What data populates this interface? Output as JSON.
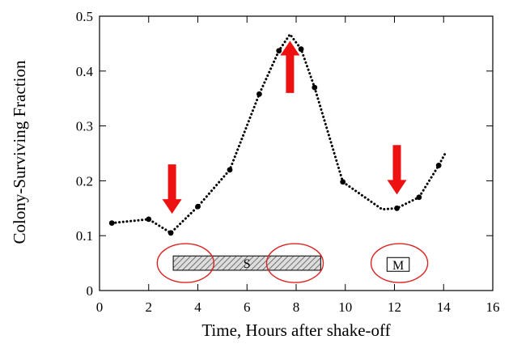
{
  "chart_data": {
    "type": "scatter",
    "xlabel": "Time, Hours after shake-off",
    "ylabel": "Colony-Surviving Fraction",
    "xlim": [
      0,
      16
    ],
    "ylim": [
      0,
      0.5
    ],
    "x_ticks": [
      0,
      2,
      4,
      6,
      8,
      10,
      12,
      14,
      16
    ],
    "y_ticks": [
      0,
      0.1,
      0.2,
      0.3,
      0.4,
      0.5
    ],
    "x_tick_labels": [
      "0",
      "2",
      "4",
      "6",
      "8",
      "10",
      "12",
      "14",
      "16"
    ],
    "y_tick_labels": [
      "0",
      "0.1",
      "0.2",
      "0.3",
      "0.4",
      "0.5"
    ],
    "grid": false,
    "series": [
      {
        "points": [
          {
            "x": 0.5,
            "y": 0.123
          },
          {
            "x": 2.0,
            "y": 0.13
          },
          {
            "x": 2.9,
            "y": 0.105
          },
          {
            "x": 4.0,
            "y": 0.153
          },
          {
            "x": 5.3,
            "y": 0.22
          },
          {
            "x": 6.5,
            "y": 0.358
          },
          {
            "x": 7.3,
            "y": 0.437
          },
          {
            "x": 7.75,
            "y": 0.467
          },
          {
            "x": 8.2,
            "y": 0.44
          },
          {
            "x": 8.75,
            "y": 0.37
          },
          {
            "x": 9.9,
            "y": 0.198
          },
          {
            "x": 11.5,
            "y": 0.148
          },
          {
            "x": 12.1,
            "y": 0.15
          },
          {
            "x": 13.0,
            "y": 0.17
          },
          {
            "x": 13.8,
            "y": 0.228
          },
          {
            "x": 14.1,
            "y": 0.253
          }
        ],
        "markers": [
          {
            "x": 0.5,
            "y": 0.123
          },
          {
            "x": 2.0,
            "y": 0.13
          },
          {
            "x": 2.9,
            "y": 0.105
          },
          {
            "x": 4.0,
            "y": 0.153
          },
          {
            "x": 5.3,
            "y": 0.22
          },
          {
            "x": 6.5,
            "y": 0.358
          },
          {
            "x": 7.3,
            "y": 0.437
          },
          {
            "x": 8.2,
            "y": 0.44
          },
          {
            "x": 8.75,
            "y": 0.37
          },
          {
            "x": 9.9,
            "y": 0.198
          },
          {
            "x": 12.1,
            "y": 0.15
          },
          {
            "x": 13.0,
            "y": 0.17
          },
          {
            "x": 13.8,
            "y": 0.228
          }
        ]
      }
    ],
    "phases": [
      {
        "label": "S",
        "x_start": 3.0,
        "x_end": 9.0,
        "y_low": 0.037,
        "y_high": 0.063,
        "fill": "hatched"
      },
      {
        "label": "M",
        "x_start": 11.7,
        "x_end": 12.6,
        "y_low": 0.035,
        "y_high": 0.06,
        "fill": "white"
      }
    ],
    "highlight_circles": [
      {
        "x": 3.5,
        "y": 0.05
      },
      {
        "x": 7.95,
        "y": 0.05
      },
      {
        "x": 12.2,
        "y": 0.05
      }
    ],
    "arrows": [
      {
        "x": 2.95,
        "direction": "down",
        "y_from": 0.23,
        "y_to": 0.14
      },
      {
        "x": 7.75,
        "direction": "up",
        "y_from": 0.36,
        "y_to": 0.455
      },
      {
        "x": 12.1,
        "direction": "down",
        "y_from": 0.265,
        "y_to": 0.175
      }
    ],
    "colors": {
      "line": "#000000",
      "arrow": "#ee1111",
      "circle": "#dd2222",
      "bar_stroke": "#222222",
      "hatch": "#555555",
      "bar_fill": "#dddddd"
    }
  }
}
